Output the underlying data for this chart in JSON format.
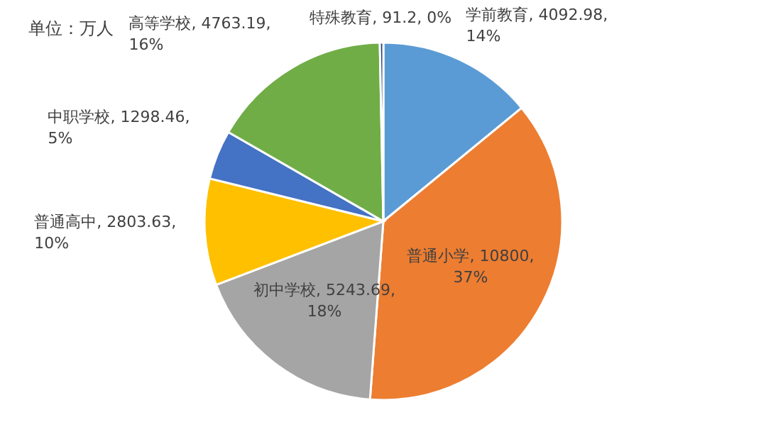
{
  "chart_data": {
    "type": "pie",
    "title": "单位：万人",
    "categories": [
      "学前教育",
      "普通小学",
      "初中学校",
      "普通高中",
      "中职学校",
      "高等学校",
      "特殊教育"
    ],
    "values": [
      4092.98,
      10800,
      5243.69,
      2803.63,
      1298.46,
      4763.19,
      91.2
    ],
    "colors": [
      "#5b9bd5",
      "#ed7d31",
      "#a5a5a5",
      "#ffc000",
      "#4472c4",
      "#70ad47",
      "#264478"
    ],
    "value_labels": [
      "4092.98, 14%",
      "10800, 37%",
      "5243.69, 18%",
      "2803.63, 10%",
      "1298.46, 5%",
      "4763.19, 16%",
      "91.2, 0%"
    ]
  }
}
